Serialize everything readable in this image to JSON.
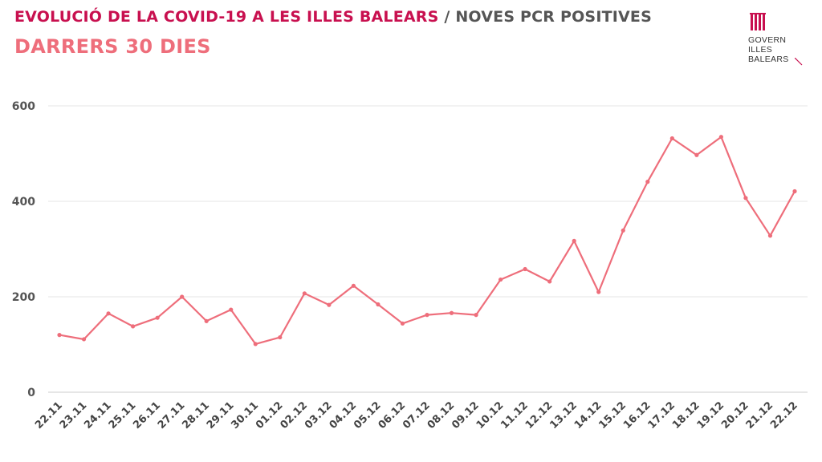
{
  "header": {
    "title": "EVOLUCIÓ DE LA COVID-19 A LES ILLES BALEARS",
    "separator": "/",
    "title_suffix": "NOVES PCR POSITIVES",
    "subtitle": "DARRERS 30 DIES"
  },
  "logo": {
    "line1": "GOVERN",
    "line2": "ILLES",
    "line3": "BALEARS",
    "icon": "government-crest-icon"
  },
  "colors": {
    "title": "#c8104f",
    "subtitle": "#ee6e7b",
    "line": "#ee6e7b",
    "grid": "#e6e6e6"
  },
  "chart_data": {
    "type": "line",
    "title": "",
    "xlabel": "",
    "ylabel": "",
    "ylim": [
      0,
      600
    ],
    "yticks": [
      0,
      200,
      400,
      600
    ],
    "grid": true,
    "categories": [
      "22.11",
      "23.11",
      "24.11",
      "25.11",
      "26.11",
      "27.11",
      "28.11",
      "29.11",
      "30.11",
      "01.12",
      "02.12",
      "03.12",
      "04.12",
      "05.12",
      "06.12",
      "07.12",
      "08.12",
      "09.12",
      "10.12",
      "11.12",
      "12.12",
      "13.12",
      "14.12",
      "15.12",
      "16.12",
      "17.12",
      "18.12",
      "19.12",
      "20.12",
      "21.12",
      "22.12"
    ],
    "series": [
      {
        "values": [
          120,
          111,
          165,
          138,
          156,
          200,
          149,
          173,
          101,
          115,
          207,
          183,
          223,
          184,
          144,
          162,
          166,
          162,
          236,
          258,
          232,
          317,
          210,
          339,
          441,
          532,
          497,
          535,
          407,
          328,
          421
        ]
      }
    ]
  }
}
